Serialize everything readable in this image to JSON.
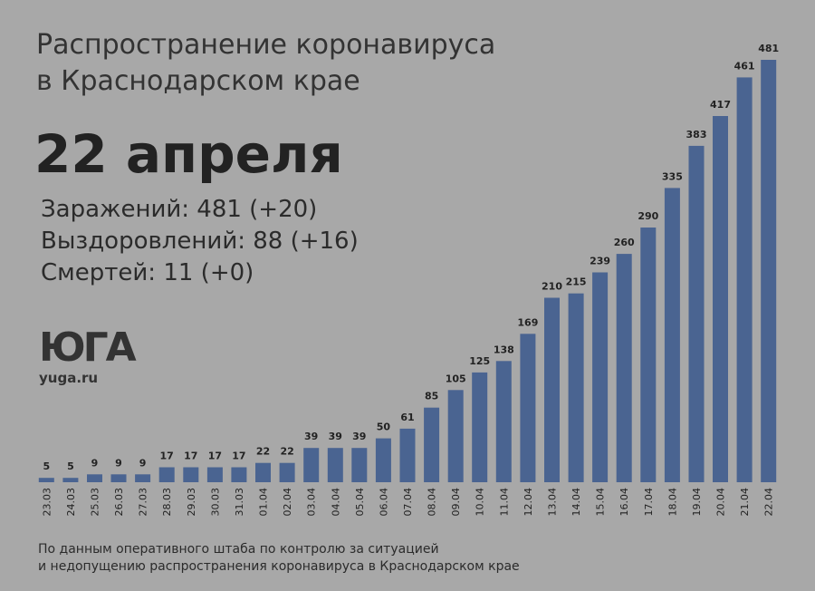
{
  "header": {
    "title_line1": "Распространение коронавируса",
    "title_line2": "в Краснодарском крае",
    "date": "22 апреля"
  },
  "stats": {
    "infected": "Заражений: 481 (+20)",
    "recovered": "Выздоровлений: 88 (+16)",
    "deaths": "Смертей: 11 (+0)"
  },
  "logo": {
    "mark": "ЮГА",
    "site": "yuga.ru"
  },
  "footer": {
    "line1": "По данным оперативного штаба по контролю за ситуацией",
    "line2": "и недопущению распространения коронавируса в Краснодарском крае"
  },
  "colors": {
    "background": "#a8a8a8",
    "bar": "#4a6491"
  },
  "chart_data": {
    "type": "bar",
    "categories": [
      "23.03",
      "24.03",
      "25.03",
      "26.03",
      "27.03",
      "28.03",
      "29.03",
      "30.03",
      "31.03",
      "01.04",
      "02.04",
      "03.04",
      "04.04",
      "05.04",
      "06.04",
      "07.04",
      "08.04",
      "09.04",
      "10.04",
      "11.04",
      "12.04",
      "13.04",
      "14.04",
      "15.04",
      "16.04",
      "17.04",
      "18.04",
      "19.04",
      "20.04",
      "21.04",
      "22.04"
    ],
    "values": [
      5,
      5,
      9,
      9,
      9,
      17,
      17,
      17,
      17,
      22,
      22,
      39,
      39,
      39,
      50,
      61,
      85,
      105,
      125,
      138,
      169,
      210,
      215,
      239,
      260,
      290,
      335,
      383,
      417,
      461,
      481
    ],
    "ylim": [
      0,
      481
    ],
    "grid": false,
    "legend": "none"
  }
}
